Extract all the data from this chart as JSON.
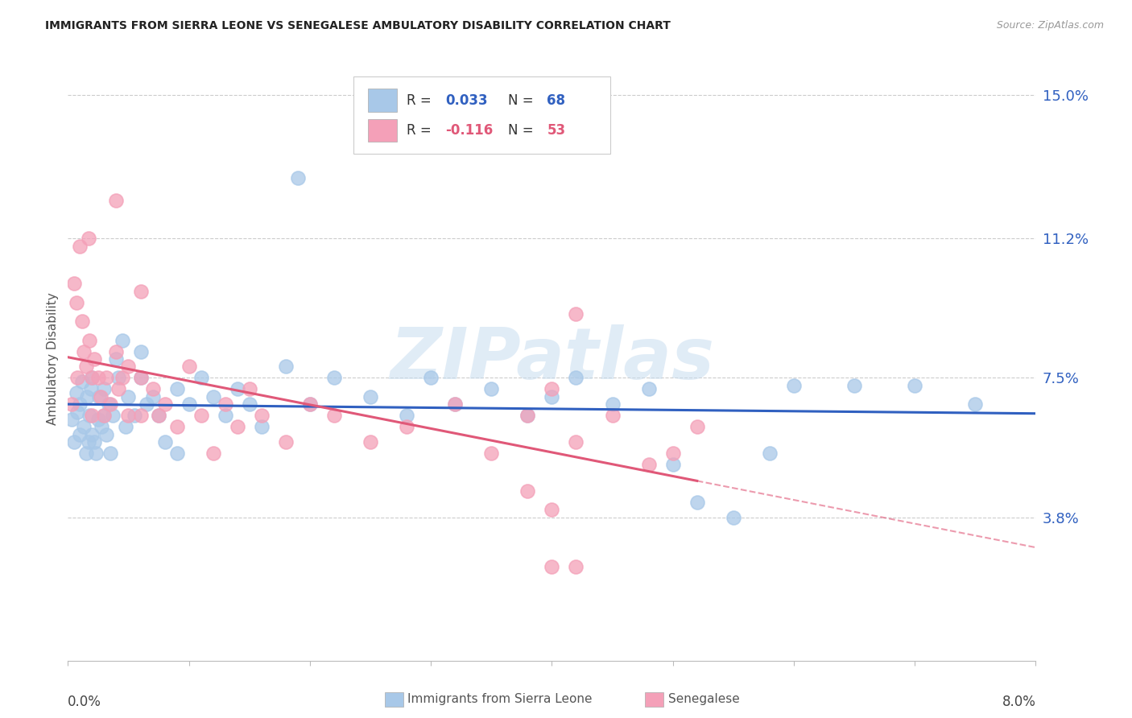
{
  "title": "IMMIGRANTS FROM SIERRA LEONE VS SENEGALESE AMBULATORY DISABILITY CORRELATION CHART",
  "source": "Source: ZipAtlas.com",
  "ylabel": "Ambulatory Disability",
  "color_sl": "#a8c8e8",
  "color_sn": "#f4a0b8",
  "color_sl_line": "#3060c0",
  "color_sn_line": "#e05878",
  "r_sl": "0.033",
  "n_sl": "68",
  "r_sn": "-0.116",
  "n_sn": "53",
  "xmin": 0.0,
  "xmax": 0.08,
  "ymin": 0.0,
  "ymax": 0.16,
  "ytick_vals": [
    0.038,
    0.075,
    0.112,
    0.15
  ],
  "ytick_labels": [
    "3.8%",
    "7.5%",
    "11.2%",
    "15.0%"
  ],
  "watermark": "ZIPatlas",
  "sl_x": [
    0.0003,
    0.0005,
    0.0007,
    0.0008,
    0.001,
    0.001,
    0.0012,
    0.0013,
    0.0015,
    0.0016,
    0.0017,
    0.0018,
    0.0019,
    0.002,
    0.002,
    0.0022,
    0.0023,
    0.0025,
    0.0026,
    0.0028,
    0.003,
    0.003,
    0.0032,
    0.0034,
    0.0035,
    0.0037,
    0.004,
    0.0042,
    0.0045,
    0.0048,
    0.005,
    0.0055,
    0.006,
    0.006,
    0.0065,
    0.007,
    0.0075,
    0.008,
    0.009,
    0.009,
    0.01,
    0.011,
    0.012,
    0.013,
    0.014,
    0.015,
    0.016,
    0.018,
    0.02,
    0.022,
    0.025,
    0.028,
    0.03,
    0.032,
    0.035,
    0.038,
    0.04,
    0.042,
    0.045,
    0.048,
    0.05,
    0.052,
    0.055,
    0.058,
    0.06,
    0.065,
    0.07,
    0.075
  ],
  "sl_y": [
    0.064,
    0.058,
    0.071,
    0.066,
    0.06,
    0.068,
    0.074,
    0.062,
    0.055,
    0.07,
    0.058,
    0.065,
    0.072,
    0.06,
    0.075,
    0.058,
    0.055,
    0.064,
    0.07,
    0.062,
    0.065,
    0.072,
    0.06,
    0.068,
    0.055,
    0.065,
    0.08,
    0.075,
    0.085,
    0.062,
    0.07,
    0.065,
    0.075,
    0.082,
    0.068,
    0.07,
    0.065,
    0.058,
    0.055,
    0.072,
    0.068,
    0.075,
    0.07,
    0.065,
    0.072,
    0.068,
    0.062,
    0.078,
    0.068,
    0.075,
    0.07,
    0.065,
    0.075,
    0.068,
    0.072,
    0.065,
    0.07,
    0.075,
    0.068,
    0.072,
    0.052,
    0.042,
    0.038,
    0.055,
    0.073,
    0.073,
    0.073,
    0.068
  ],
  "sn_x": [
    0.0003,
    0.0005,
    0.0007,
    0.0008,
    0.001,
    0.0012,
    0.0013,
    0.0015,
    0.0017,
    0.0018,
    0.002,
    0.002,
    0.0022,
    0.0025,
    0.0027,
    0.003,
    0.0032,
    0.0035,
    0.004,
    0.0042,
    0.0045,
    0.005,
    0.005,
    0.006,
    0.006,
    0.007,
    0.0075,
    0.008,
    0.009,
    0.01,
    0.011,
    0.012,
    0.013,
    0.014,
    0.015,
    0.016,
    0.018,
    0.02,
    0.022,
    0.025,
    0.028,
    0.032,
    0.035,
    0.038,
    0.04,
    0.042,
    0.045,
    0.048,
    0.05,
    0.052,
    0.038,
    0.04,
    0.042
  ],
  "sn_y": [
    0.068,
    0.1,
    0.095,
    0.075,
    0.11,
    0.09,
    0.082,
    0.078,
    0.112,
    0.085,
    0.075,
    0.065,
    0.08,
    0.075,
    0.07,
    0.065,
    0.075,
    0.068,
    0.082,
    0.072,
    0.075,
    0.065,
    0.078,
    0.065,
    0.075,
    0.072,
    0.065,
    0.068,
    0.062,
    0.078,
    0.065,
    0.055,
    0.068,
    0.062,
    0.072,
    0.065,
    0.058,
    0.068,
    0.065,
    0.058,
    0.062,
    0.068,
    0.055,
    0.065,
    0.072,
    0.058,
    0.065,
    0.052,
    0.055,
    0.062,
    0.045,
    0.04,
    0.025
  ]
}
